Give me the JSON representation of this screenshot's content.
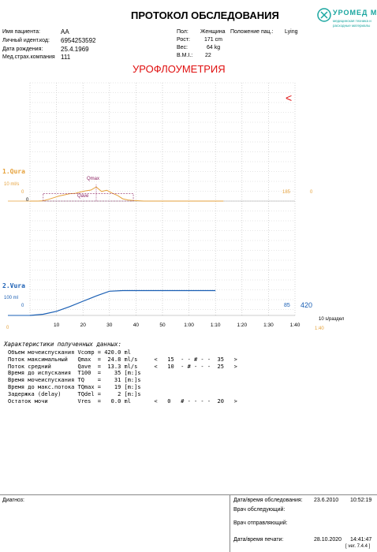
{
  "header": {
    "title": "ПРОТОКОЛ ОБСЛЕДОВАНИЯ",
    "subtitle": "УРОФЛОУМЕТРИЯ",
    "logo_text": "УРОМЕД М",
    "logo_sub1": "медицинская техника и",
    "logo_sub2": "расходные материалы"
  },
  "patient": {
    "name_label": "Имя пациента:",
    "name": "AA",
    "id_label": "Личный идент.код:",
    "id": "6954253592",
    "dob_label": "Дата рождения:",
    "dob": "25.4.1969",
    "ins_label": "Мед.страх.компания",
    "ins": "111",
    "sex_label": "Пол:",
    "sex": "Женщина",
    "pos_label": "Положение пац.:",
    "pos": "Lying",
    "height_label": "Рост:",
    "height": "171 cm",
    "weight_label": "Вес:",
    "weight": "64 kg",
    "bmi_label": "B.M.I.:",
    "bmi": "22"
  },
  "chart_data": [
    {
      "type": "line",
      "title": "1.Qura",
      "ylabel": "10 ml/s",
      "left_zero": "0",
      "left_zero2": "0",
      "right_val": "185",
      "right_zero": "0",
      "annotations": [
        "Qmax",
        "Qave"
      ],
      "marker": "<",
      "color": "#e6a23c",
      "x": [
        0,
        2,
        4,
        6,
        8,
        10,
        12,
        14,
        16,
        18,
        20,
        22,
        24,
        26,
        28,
        30,
        32,
        34,
        36,
        38,
        40,
        45,
        50,
        55,
        60,
        70
      ],
      "values": [
        0,
        0.5,
        3,
        6,
        9,
        11,
        13,
        13.5,
        16,
        18,
        19.5,
        24.8,
        17,
        19,
        14,
        10,
        4,
        2,
        1,
        0.5,
        0,
        0,
        0,
        0,
        0,
        0
      ],
      "qave_level": 13.3
    },
    {
      "type": "line",
      "title": "2.Vura",
      "ylabel": "100 ml",
      "left_zero": "0",
      "right_val": "85",
      "right_val2": "420",
      "color": "#1a5fb4",
      "x": [
        0,
        5,
        10,
        15,
        20,
        25,
        30,
        35,
        40,
        50,
        60,
        70
      ],
      "values": [
        0,
        20,
        70,
        150,
        240,
        330,
        410,
        420,
        420,
        420,
        420,
        420
      ]
    }
  ],
  "axis": {
    "x_ticks": [
      "10",
      "20",
      "30",
      "40",
      "50",
      "1:00",
      "1:10",
      "1:20",
      "1:30",
      "1:40"
    ],
    "x_zero": "0",
    "x_unit": "10 s/раздел",
    "x_extra": "1:40"
  },
  "characteristics": {
    "title": "Характеристики полученных данных:",
    "rows": [
      "Объем мочеиспускания Vcomp = 420.0 ml",
      "Поток максимальный   Qmax  =  24.8 ml/s     <   15  - - # - -  35   >",
      "Поток средний        Qave  =  13.3 ml/s     <   10  - # - - -  25   >",
      "Время до испускания  T100  =    35 [m:]s",
      "Время мочеиспускания TQ    =    31 [m:]s",
      "Время до макс.потока TQmax =    19 [m:]s",
      "Задержка (delay)     TQdel =     2 [m:]s",
      "Остаток мочи         Vres  =   0.0 ml       <   0   # - - - -  20   >"
    ]
  },
  "footer": {
    "diag_label": "Диагноз:",
    "exam_label": "Дата/время обследования:",
    "exam_date": "23.6.2010",
    "exam_time": "10:52:19",
    "doc1_label": "Врач обследующий:",
    "doc2_label": "Врач отправляющий:",
    "print_label": "Дата/время печати:",
    "print_date": "28.10.2020",
    "print_time": "14:41:47",
    "version": "[ ver. 7.4.4 ]"
  }
}
